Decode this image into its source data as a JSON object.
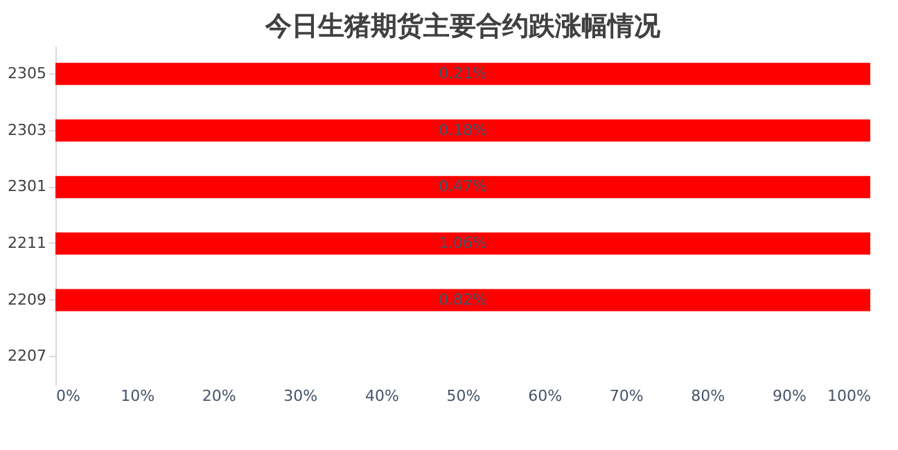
{
  "chart_data": {
    "type": "bar",
    "orientation": "horizontal",
    "title": "今日生猪期货主要合约跌涨幅情况",
    "categories": [
      "2305",
      "2303",
      "2301",
      "2211",
      "2209",
      "2207"
    ],
    "series": [
      {
        "color": "#ff0000",
        "values": [
          100,
          100,
          100,
          100,
          100,
          null
        ]
      }
    ],
    "annotations": [
      "0.21%",
      "0.18%",
      "0.47%",
      "1.06%",
      "0.82%"
    ],
    "xlim": [
      0,
      100
    ],
    "xticks": [
      {
        "value": 0,
        "label": "0%"
      },
      {
        "value": 10,
        "label": "10%"
      },
      {
        "value": 20,
        "label": "20%"
      },
      {
        "value": 30,
        "label": "30%"
      },
      {
        "value": 40,
        "label": "40%"
      },
      {
        "value": 50,
        "label": "50%"
      },
      {
        "value": 60,
        "label": "60%"
      },
      {
        "value": 70,
        "label": "70%"
      },
      {
        "value": 80,
        "label": "80%"
      },
      {
        "value": 90,
        "label": "90%"
      },
      {
        "value": 100,
        "label": "100%"
      }
    ],
    "grid": false
  }
}
